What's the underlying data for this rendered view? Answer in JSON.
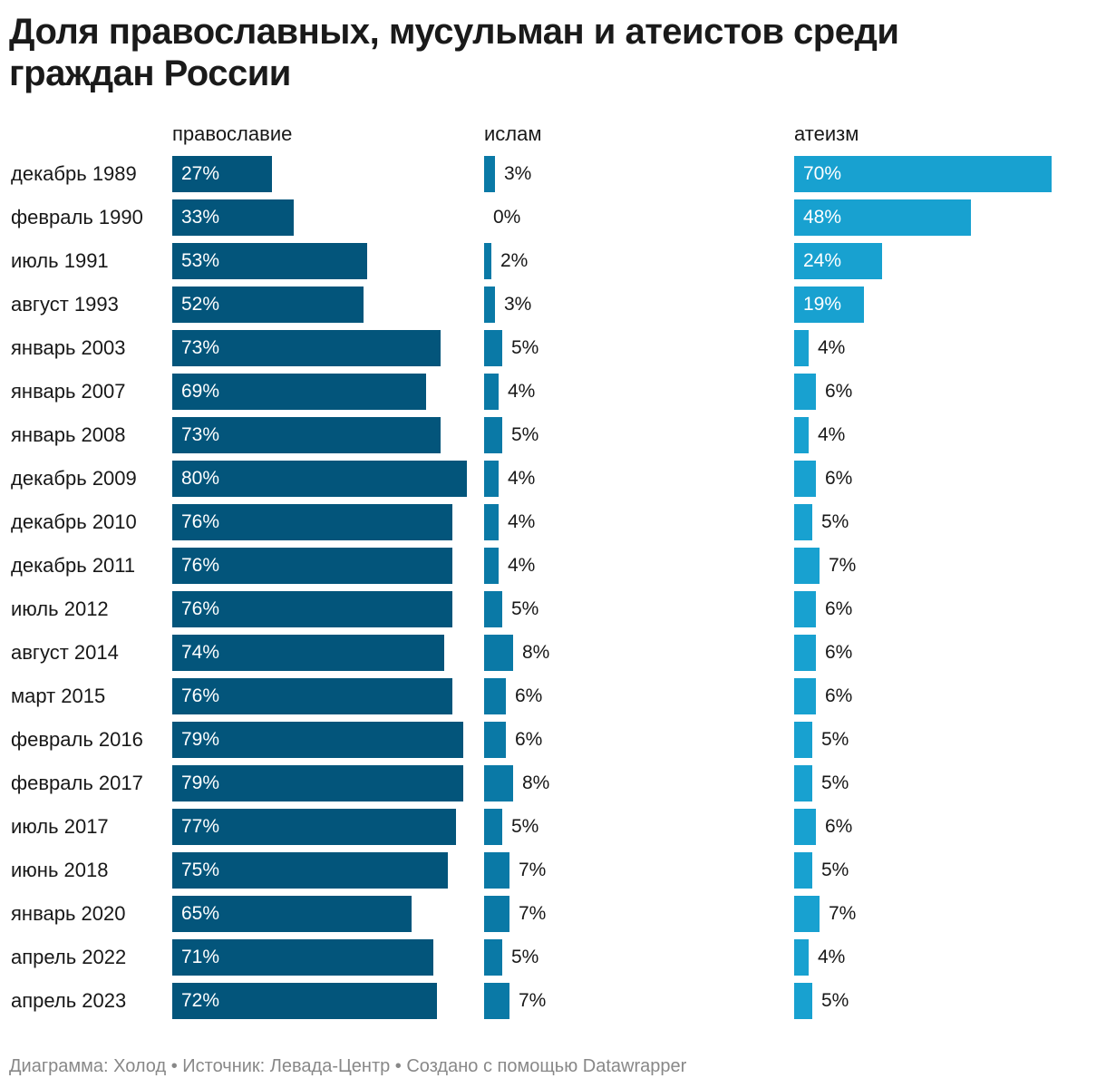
{
  "title": "Доля православных, мусульман и атеистов среди граждан России",
  "footer": "Диаграмма: Холод • Источник: Левада-Центр • Создано с помощью Datawrapper",
  "colors": {
    "orthodox": "#03557b",
    "islam": "#0a79a6",
    "atheism": "#18a1d0"
  },
  "chart_data": {
    "type": "bar",
    "orientation": "horizontal",
    "layout": "small-multiples",
    "title": "Доля православных, мусульман и атеистов среди граждан России",
    "value_suffix": "%",
    "categories": [
      "декабрь 1989",
      "февраль 1990",
      "июль 1991",
      "август 1993",
      "январь 2003",
      "январь 2007",
      "январь 2008",
      "декабрь 2009",
      "декабрь 2010",
      "декабрь 2011",
      "июль 2012",
      "август 2014",
      "март 2015",
      "февраль 2016",
      "февраль 2017",
      "июль 2017",
      "июнь 2018",
      "январь 2020",
      "апрель 2022",
      "апрель 2023"
    ],
    "series": [
      {
        "name": "православие",
        "values": [
          27,
          33,
          53,
          52,
          73,
          69,
          73,
          80,
          76,
          76,
          76,
          74,
          76,
          79,
          79,
          77,
          75,
          65,
          71,
          72
        ]
      },
      {
        "name": "ислам",
        "values": [
          3,
          0,
          2,
          3,
          5,
          4,
          5,
          4,
          4,
          4,
          5,
          8,
          6,
          6,
          8,
          5,
          7,
          7,
          5,
          7
        ]
      },
      {
        "name": "атеизм",
        "values": [
          70,
          48,
          24,
          19,
          4,
          6,
          4,
          6,
          5,
          7,
          6,
          6,
          6,
          5,
          5,
          6,
          5,
          7,
          4,
          5
        ]
      }
    ]
  }
}
